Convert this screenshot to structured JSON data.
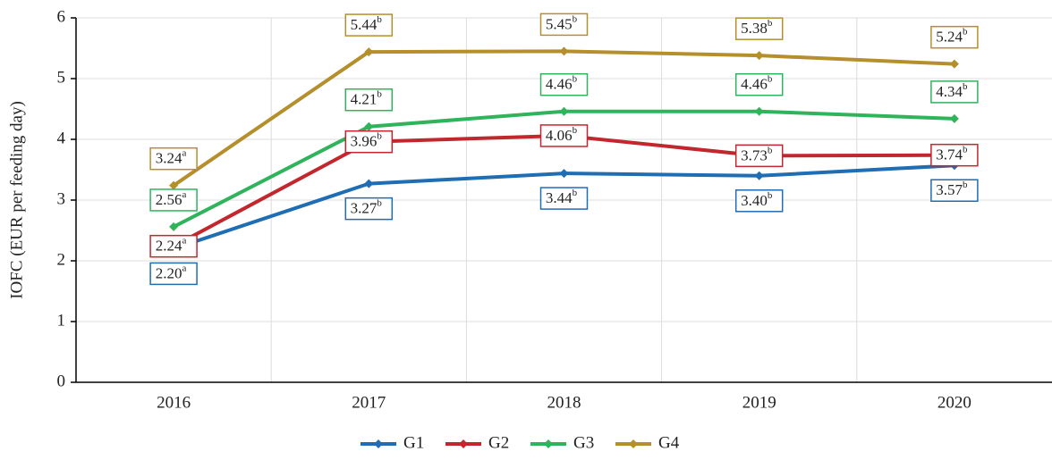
{
  "chart_data": {
    "type": "line",
    "y_label": "IOFC (EUR per feeding day)",
    "categories": [
      "2016",
      "2017",
      "2018",
      "2019",
      "2020"
    ],
    "series": [
      {
        "name": "G1",
        "color": "#1f6db3",
        "values": [
          2.2,
          3.27,
          3.44,
          3.4,
          3.57
        ],
        "value_labels": [
          "2.20",
          "3.27",
          "3.44",
          "3.40",
          "3.57"
        ],
        "superscripts": [
          "a",
          "b",
          "b",
          "b",
          "b"
        ]
      },
      {
        "name": "G2",
        "color": "#c1272d",
        "values": [
          2.24,
          3.96,
          4.06,
          3.73,
          3.74
        ],
        "value_labels": [
          "2.24",
          "3.96",
          "4.06",
          "3.73",
          "3.74"
        ],
        "superscripts": [
          "a",
          "b",
          "b",
          "b",
          "b"
        ]
      },
      {
        "name": "G3",
        "color": "#2fb35b",
        "values": [
          2.56,
          4.21,
          4.46,
          4.46,
          4.34
        ],
        "value_labels": [
          "2.56",
          "4.21",
          "4.46",
          "4.46",
          "4.34"
        ],
        "superscripts": [
          "a",
          "b",
          "b",
          "b",
          "b"
        ]
      },
      {
        "name": "G4",
        "color": "#b58f2c",
        "values": [
          3.24,
          5.44,
          5.45,
          5.38,
          5.24
        ],
        "value_labels": [
          "3.24",
          "5.44",
          "5.45",
          "5.38",
          "5.24"
        ],
        "superscripts": [
          "a",
          "b",
          "b",
          "b",
          "b"
        ]
      }
    ],
    "ylim": [
      0,
      6
    ],
    "yticks": [
      0,
      1,
      2,
      3,
      4,
      5,
      6
    ],
    "grid": true,
    "legend": "bottom"
  }
}
